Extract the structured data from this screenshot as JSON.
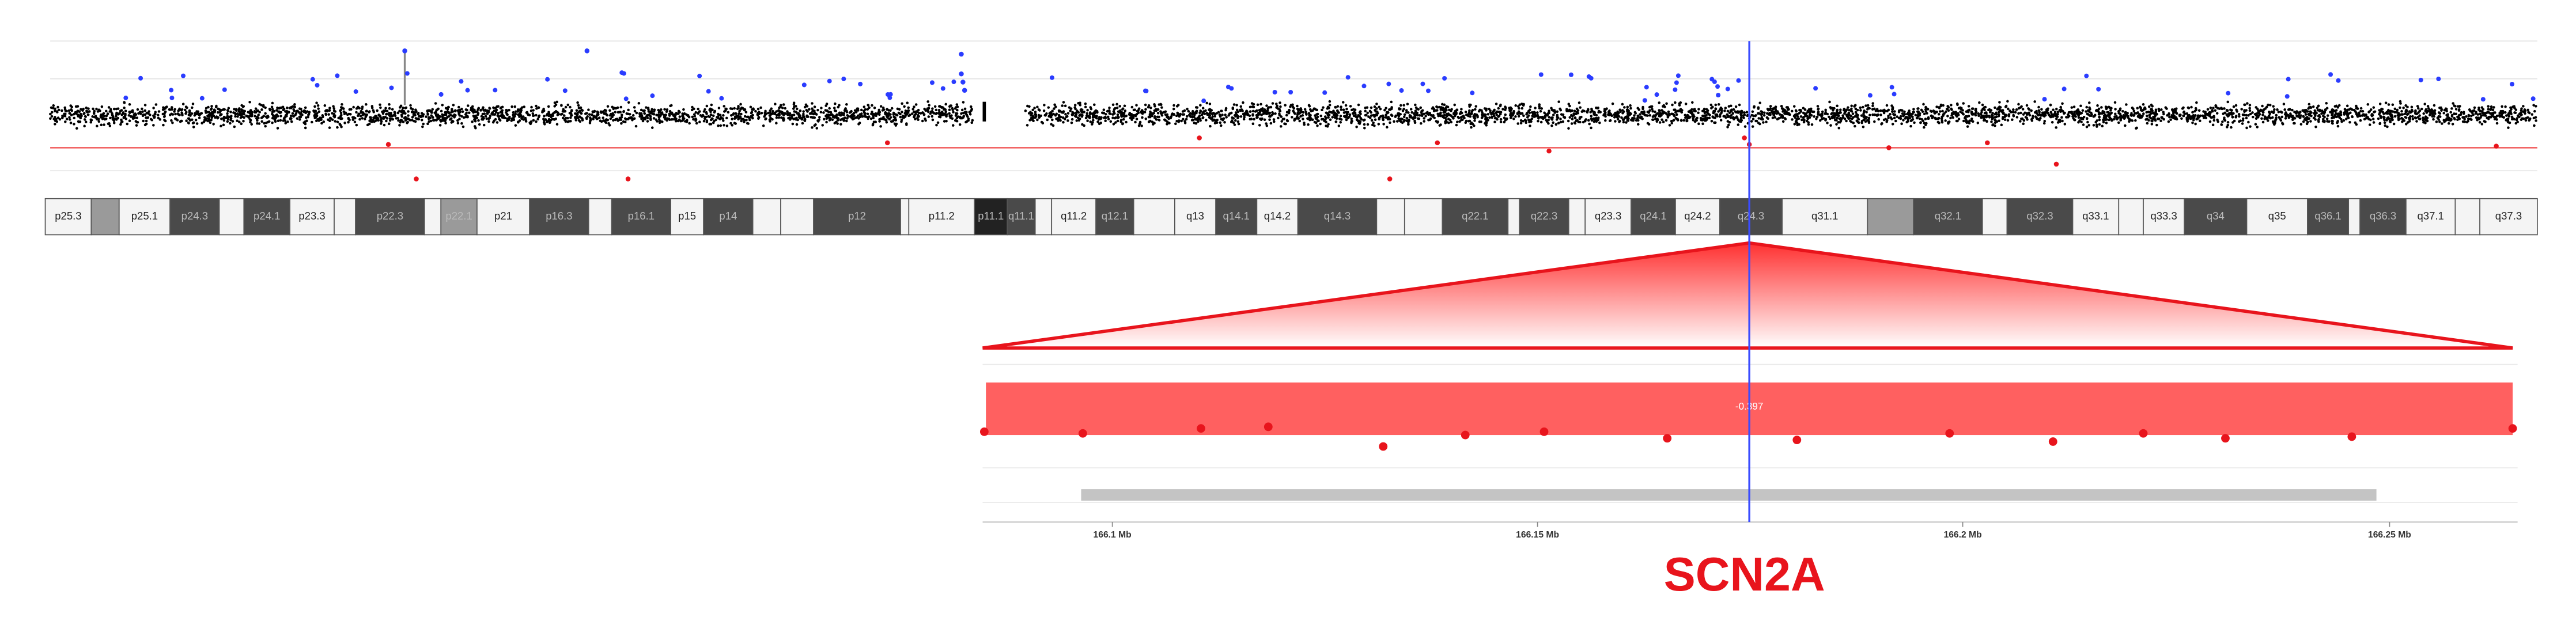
{
  "ideogram": {
    "bands": [
      "p25.3",
      "p25.1",
      "p24.3",
      "p24.1",
      "p23.3",
      "p22.3",
      "p22.1",
      "p21",
      "p16.3",
      "p16.1",
      "p15",
      "p14",
      "p12",
      "p11.2",
      "p11.1",
      "q11.1",
      "q11.2",
      "q12.1",
      "q13",
      "q14.1",
      "q14.2",
      "q14.3",
      "q22.1",
      "q22.3",
      "q23.3",
      "q24.1",
      "q24.2",
      "q24.3",
      "q31.1",
      "q32.1",
      "q32.3",
      "q33.1",
      "q33.3",
      "q34",
      "q35",
      "q36.1",
      "q36.3",
      "q37.1",
      "q37.3"
    ]
  },
  "zoom": {
    "segment_label": -0.397,
    "axis_labels": [
      "166.1 Mb",
      "166.15 Mb",
      "166.2 Mb",
      "166.25 Mb"
    ]
  },
  "gene": {
    "label": "SCN2A"
  }
}
